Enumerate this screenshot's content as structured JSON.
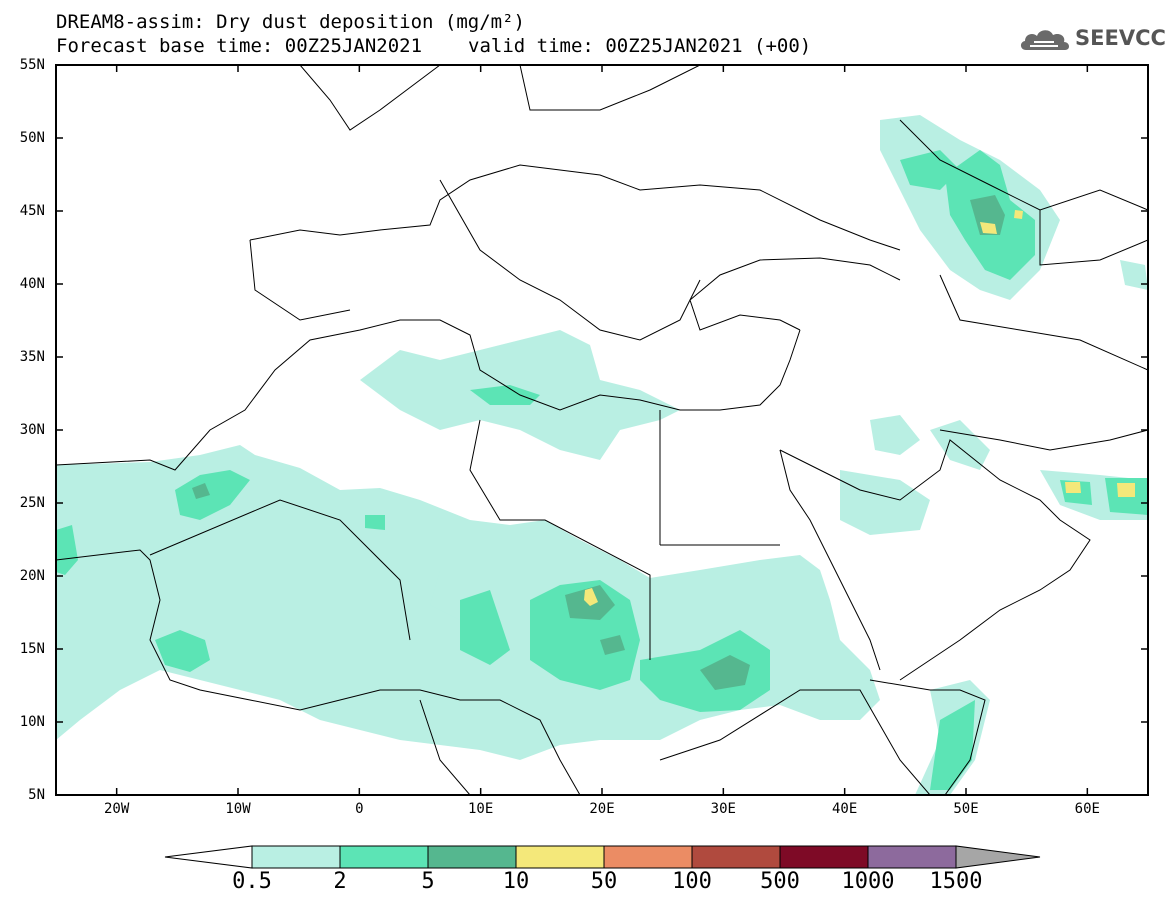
{
  "title_line1": "DREAM8-assim: Dry dust deposition (mg/m²)",
  "forecast_base": "Forecast base time: 00Z25JAN2021",
  "valid_time": "valid time: 00Z25JAN2021 (+00)",
  "logo_text": "SEEVCCC",
  "map": {
    "lon_range": [
      -25,
      65
    ],
    "lat_range": [
      5,
      55
    ],
    "lat_ticks": [
      "55N",
      "50N",
      "45N",
      "40N",
      "35N",
      "30N",
      "25N",
      "20N",
      "15N",
      "10N",
      "5N"
    ],
    "lat_values": [
      55,
      50,
      45,
      40,
      35,
      30,
      25,
      20,
      15,
      10,
      5
    ],
    "lon_ticks": [
      "20W",
      "10W",
      "0",
      "10E",
      "20E",
      "30E",
      "40E",
      "50E",
      "60E"
    ],
    "lon_values": [
      -20,
      -10,
      0,
      10,
      20,
      30,
      40,
      50,
      60
    ]
  },
  "colorbar": {
    "labels": [
      "0.5",
      "2",
      "5",
      "10",
      "50",
      "100",
      "500",
      "1000",
      "1500"
    ],
    "colors": [
      "#b9efe3",
      "#5ce4b5",
      "#55b78f",
      "#f4e87a",
      "#eb8c64",
      "#b04a3e",
      "#7e0a26",
      "#8d6a9d"
    ],
    "over_color": "#a6a6a6",
    "under_color": "#ffffff"
  }
}
